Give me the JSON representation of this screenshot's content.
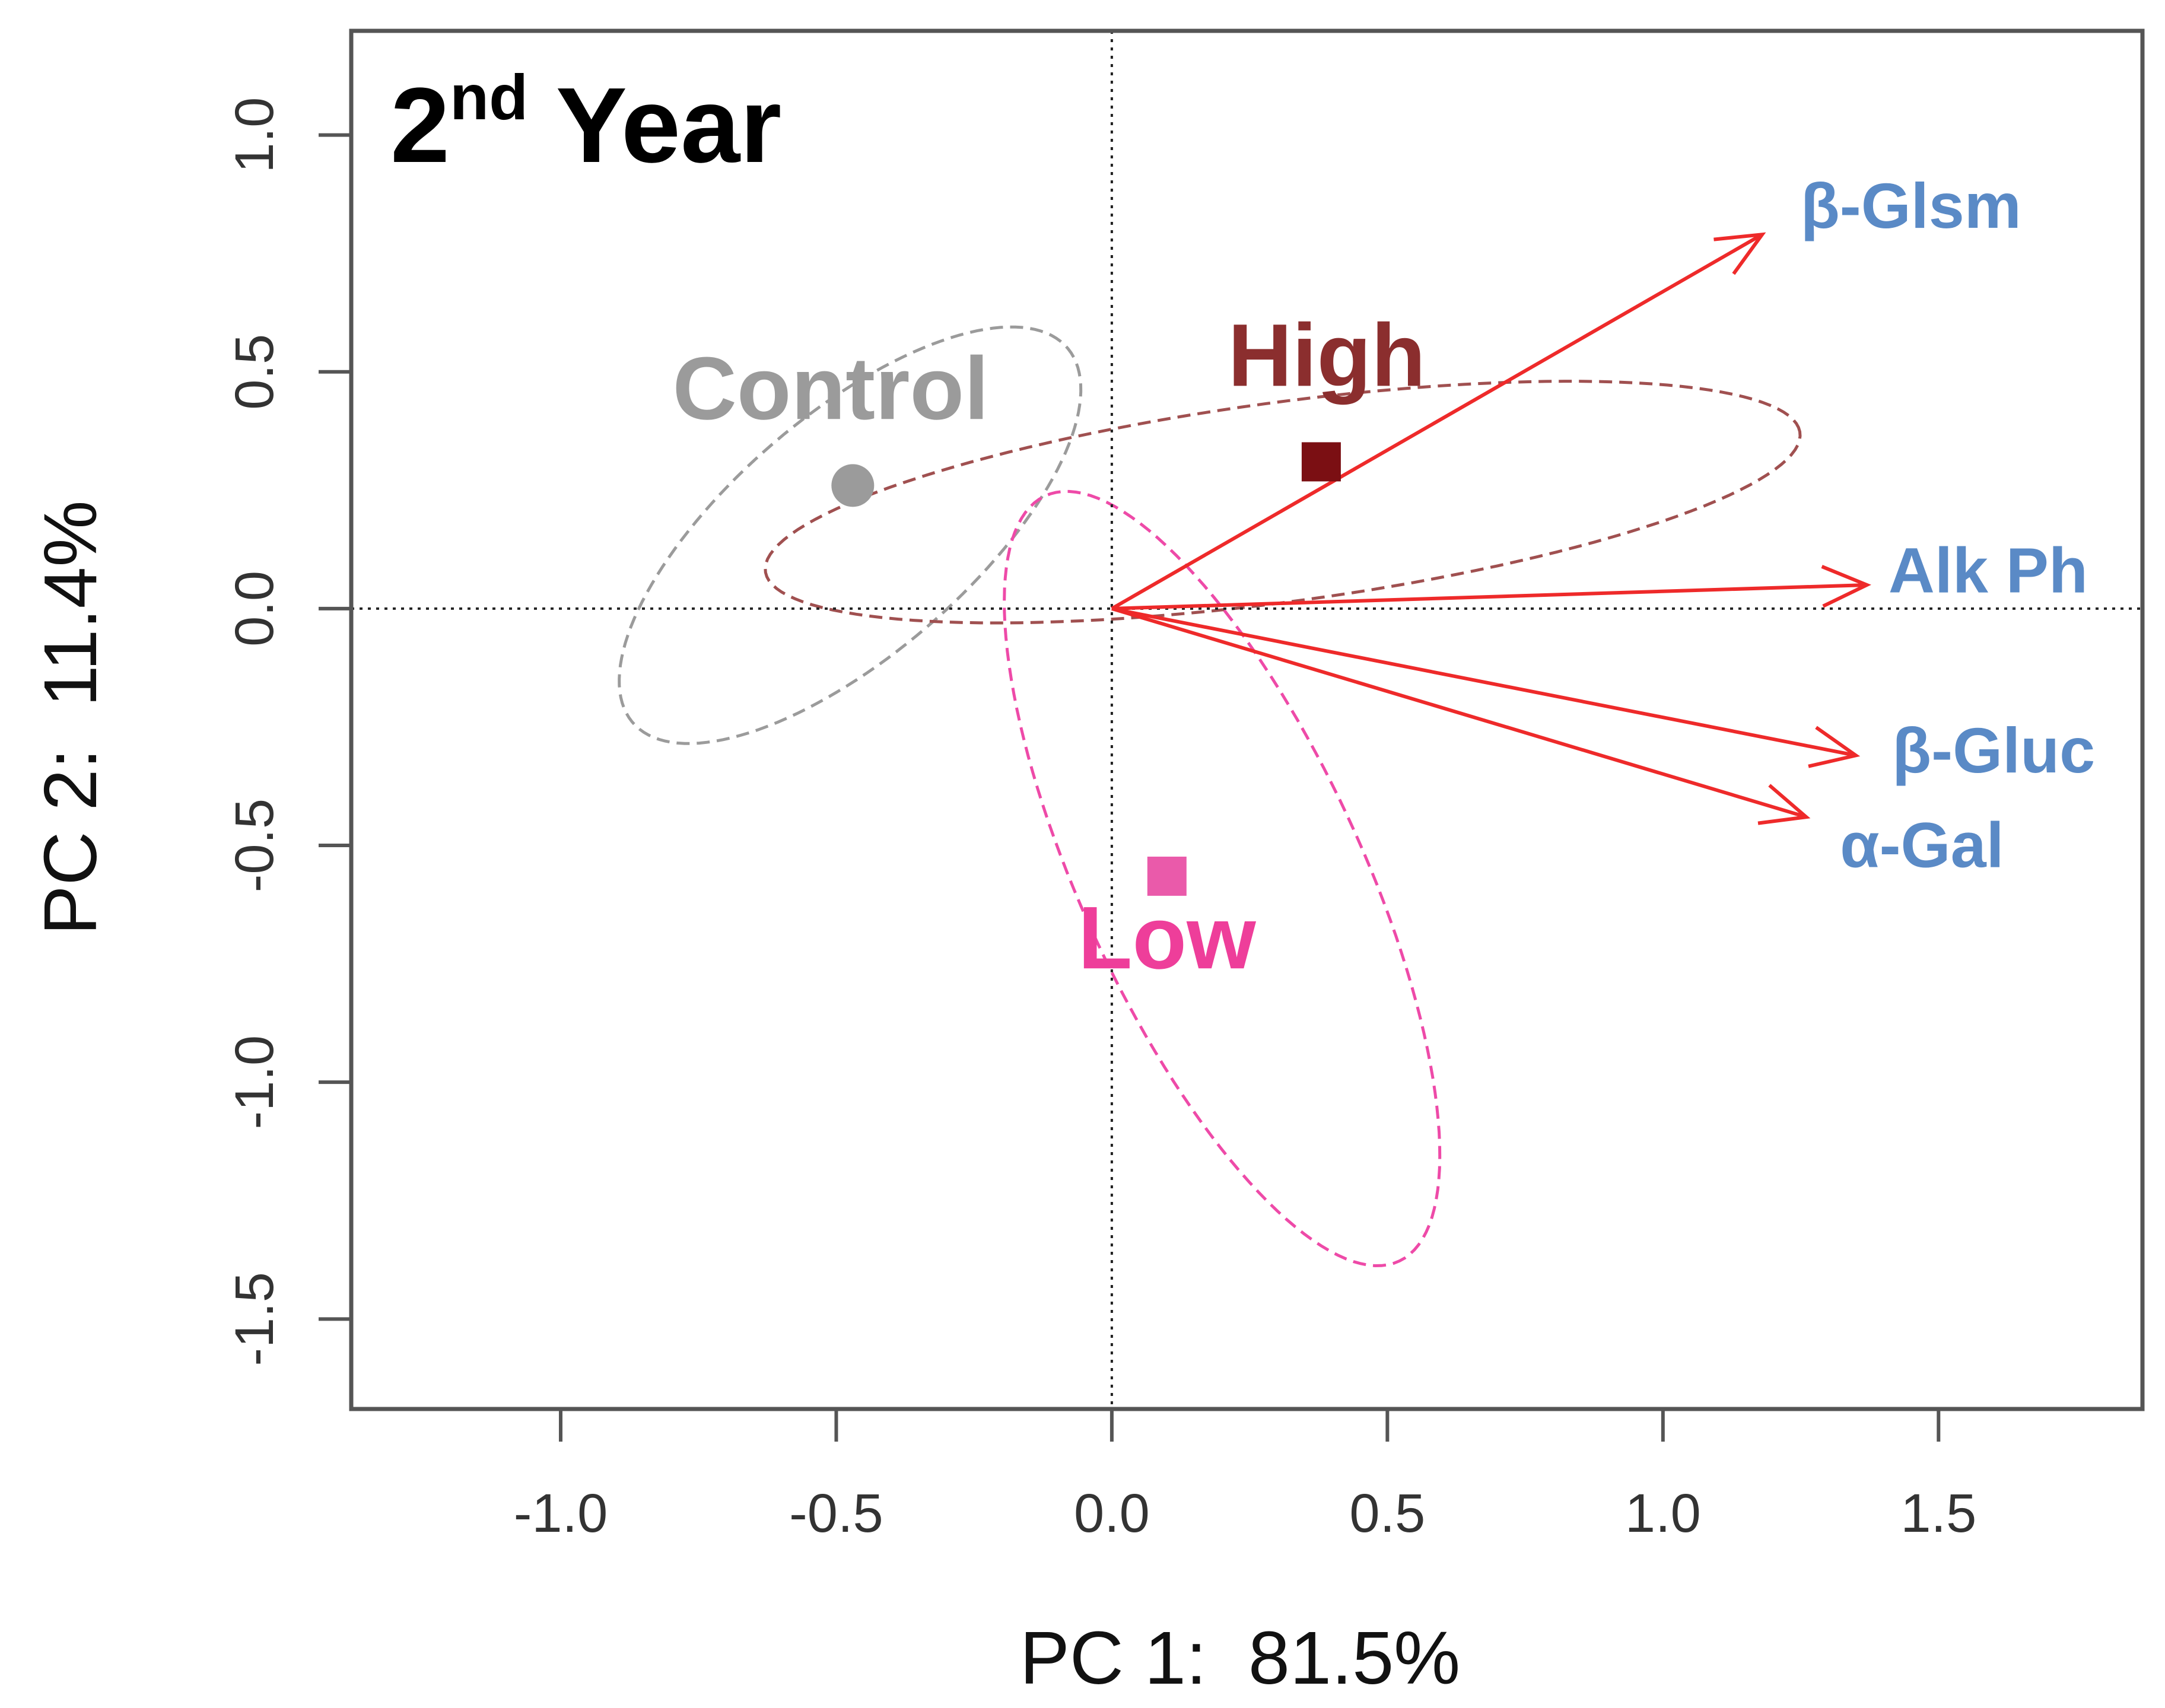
{
  "chart_data": {
    "type": "scatter",
    "subtype": "pca-biplot",
    "title": {
      "base": "2",
      "sup": "nd",
      "rest": " Year"
    },
    "xlabel": "PC 1:  81.5%",
    "ylabel": "PC 2:  11.4%",
    "xlim": [
      -1.38,
      1.87
    ],
    "ylim": [
      -1.69,
      1.22
    ],
    "x_ticks": [
      -1.0,
      -0.5,
      0.0,
      0.5,
      1.0,
      1.5
    ],
    "x_tick_labels": [
      "-1.0",
      "-0.5",
      "0.0",
      "0.5",
      "1.0",
      "1.5"
    ],
    "y_ticks": [
      1.0,
      0.5,
      0.0,
      -0.5,
      -1.0,
      -1.5
    ],
    "y_tick_labels": [
      "1.0",
      "0.5",
      "0.0",
      "-0.5",
      "-1.0",
      "-1.5"
    ],
    "reference_lines": {
      "x": 0,
      "y": 0,
      "style": "dotted"
    },
    "groups": [
      {
        "name": "Control",
        "label": "Control",
        "marker": "circle",
        "color": "#9b9b9b",
        "centroid": [
          -0.47,
          0.26
        ],
        "label_pos": [
          -0.51,
          0.45
        ],
        "ellipse": {
          "center": [
            -0.475,
            0.155
          ],
          "a": 0.56,
          "b": 0.235,
          "angle_deg": 47
        }
      },
      {
        "name": "High",
        "label": "High",
        "marker": "square",
        "color": "#7b0f13",
        "label_color": "#8b2e2e",
        "ellipse_color": "#a05050",
        "centroid": [
          0.38,
          0.31
        ],
        "label_pos": [
          0.39,
          0.52
        ],
        "ellipse": {
          "center": [
            0.31,
            0.225
          ],
          "a": 0.95,
          "b": 0.21,
          "angle_deg": 9
        }
      },
      {
        "name": "Low",
        "label": "Low",
        "marker": "square",
        "color": "#ea5aaa",
        "label_color": "#ee3e9a",
        "ellipse_color": "#ee4aa8",
        "centroid": [
          0.1,
          -0.565
        ],
        "label_pos": [
          0.1,
          -0.71
        ],
        "ellipse": {
          "center": [
            0.2,
            -0.57
          ],
          "a": 0.87,
          "b": 0.26,
          "angle_deg": -69
        }
      }
    ],
    "loadings": [
      {
        "name": "β-Glsm",
        "x": 1.18,
        "y": 0.79,
        "label_pos": [
          1.45,
          0.84
        ]
      },
      {
        "name": "Alk Ph",
        "x": 1.37,
        "y": 0.05,
        "label_pos": [
          1.59,
          0.07
        ]
      },
      {
        "name": "β-Gluc",
        "x": 1.35,
        "y": -0.31,
        "label_pos": [
          1.6,
          -0.31
        ]
      },
      {
        "name": "α-Gal",
        "x": 1.26,
        "y": -0.44,
        "label_pos": [
          1.47,
          -0.51
        ]
      }
    ],
    "loading_color": "#ee2a2a",
    "loading_label_color": "#5a8ac6",
    "axis_color": "#555555",
    "tick_label_color": "#333333"
  }
}
